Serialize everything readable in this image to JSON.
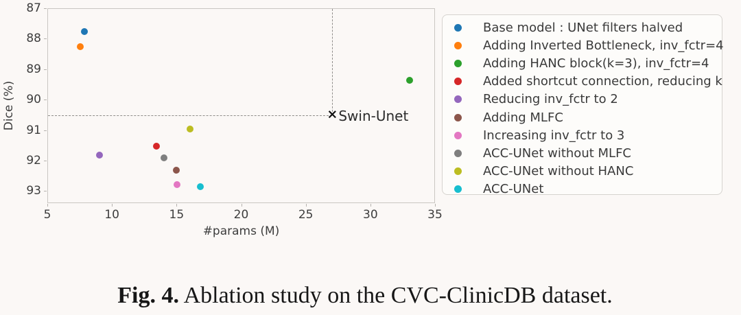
{
  "caption": {
    "label": "Fig. 4.",
    "text": "Ablation study on the CVC-ClinicDB dataset."
  },
  "chart_data": {
    "type": "scatter",
    "title": "",
    "xlabel": "#params (M)",
    "ylabel": "Dice (%)",
    "xlim": [
      5,
      35
    ],
    "ylim": [
      87,
      93.4
    ],
    "y_axis_inverted": true,
    "xticks": [
      5,
      10,
      15,
      20,
      25,
      30,
      35
    ],
    "yticks": [
      87,
      88,
      89,
      90,
      91,
      92,
      93
    ],
    "grid": false,
    "legend_position": "outside-right",
    "series": [
      {
        "name": "Base model : UNet filters halved",
        "color": "#1f77b4",
        "x": 7.8,
        "y": 87.75
      },
      {
        "name": "Adding Inverted Bottleneck, inv_fctr=4",
        "color": "#ff7f0e",
        "x": 7.5,
        "y": 88.25
      },
      {
        "name": "Adding HANC block(k=3), inv_fctr=4",
        "color": "#2ca02c",
        "x": 33.0,
        "y": 89.35
      },
      {
        "name": "Added shortcut connection, reducing k",
        "color": "#d62728",
        "x": 13.4,
        "y": 91.5
      },
      {
        "name": "Reducing inv_fctr to 2",
        "color": "#9467bd",
        "x": 9.0,
        "y": 91.8
      },
      {
        "name": "Adding MLFC",
        "color": "#8c564b",
        "x": 14.95,
        "y": 92.3
      },
      {
        "name": "Increasing inv_fctr to 3",
        "color": "#e377c2",
        "x": 15.0,
        "y": 92.77
      },
      {
        "name": "ACC-UNet without MLFC",
        "color": "#7f7f7f",
        "x": 13.95,
        "y": 91.9
      },
      {
        "name": "ACC-UNet without HANC",
        "color": "#bcbd22",
        "x": 16.0,
        "y": 90.95
      },
      {
        "name": "ACC-UNet",
        "color": "#17becf",
        "x": 16.8,
        "y": 92.83
      }
    ],
    "annotation": {
      "label": "Swin-Unet",
      "x": 27.0,
      "y": 90.5,
      "marker_glyph": "×",
      "marker_color": "#111111",
      "crosshair": "dashed lines from top spine and left spine to marker"
    }
  },
  "legend": {
    "items": [
      {
        "label": "Base model : UNet filters halved",
        "color": "#1f77b4"
      },
      {
        "label": "Adding Inverted Bottleneck, inv_fctr=4",
        "color": "#ff7f0e"
      },
      {
        "label": "Adding HANC block(k=3), inv_fctr=4",
        "color": "#2ca02c"
      },
      {
        "label": "Added shortcut connection, reducing k",
        "color": "#d62728"
      },
      {
        "label": "Reducing inv_fctr to 2",
        "color": "#9467bd"
      },
      {
        "label": "Adding MLFC",
        "color": "#8c564b"
      },
      {
        "label": "Increasing inv_fctr to 3",
        "color": "#e377c2"
      },
      {
        "label": "ACC-UNet without MLFC",
        "color": "#7f7f7f"
      },
      {
        "label": "ACC-UNet without HANC",
        "color": "#bcbd22"
      },
      {
        "label": "ACC-UNet",
        "color": "#17becf"
      }
    ]
  },
  "colors": {
    "background": "#fbf8f6",
    "spine": "#c9c6c2",
    "tick_text": "#3d3d3d",
    "legend_border": "#d6d3cf",
    "dashed_line": "#8f8d8a",
    "caption_text": "#171717"
  }
}
